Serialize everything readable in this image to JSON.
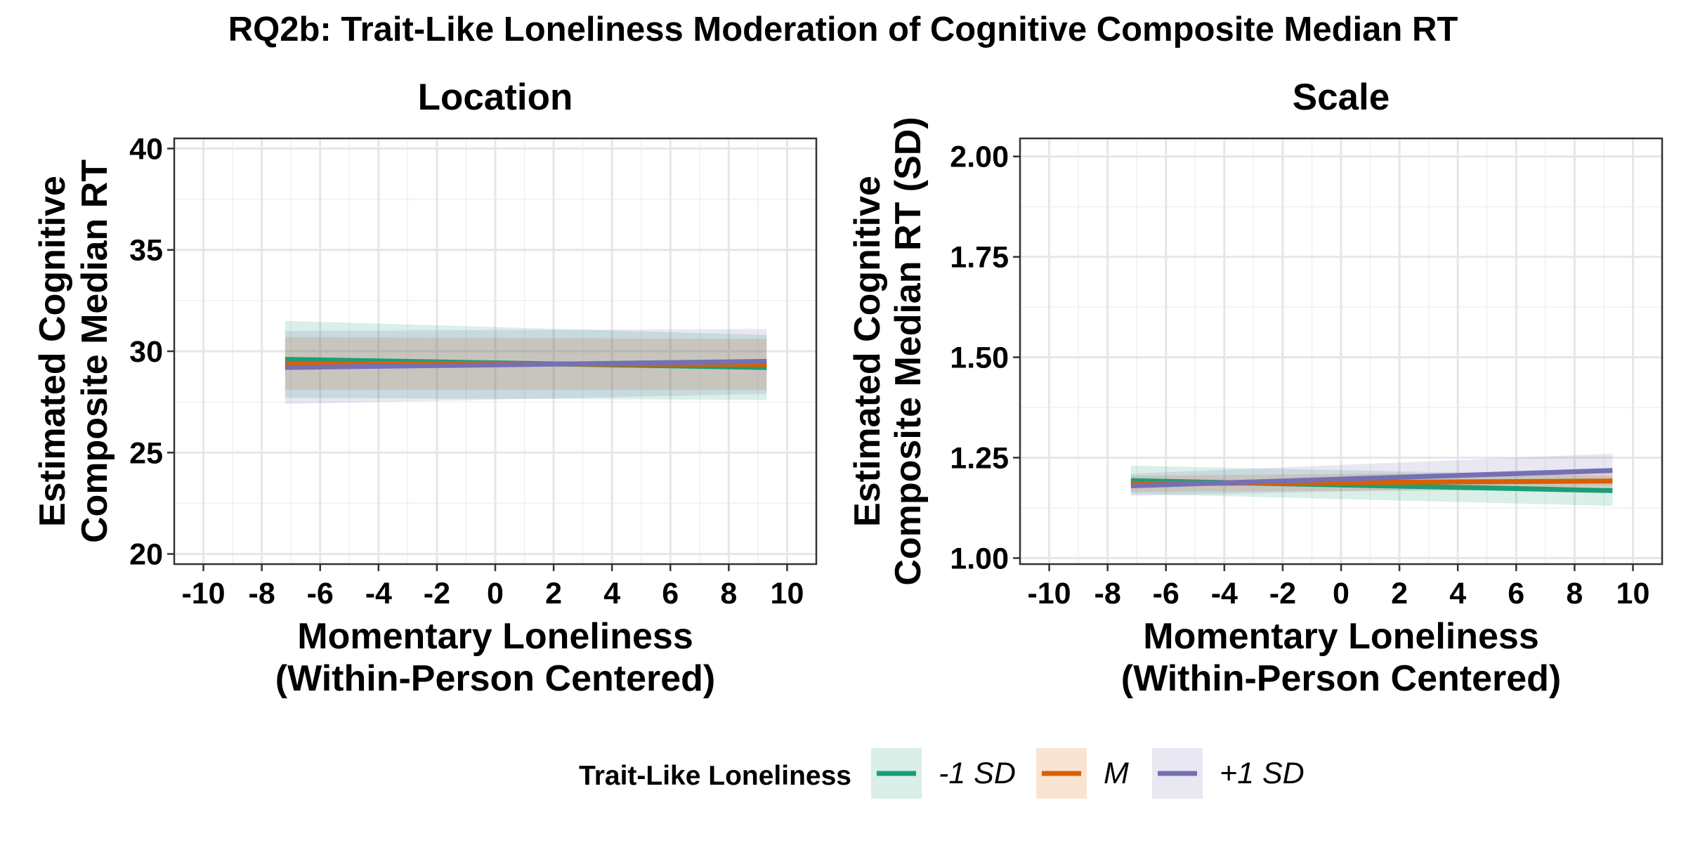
{
  "figure": {
    "title": "RQ2b: Trait-Like Loneliness Moderation of Cognitive Composite Median RT"
  },
  "legend": {
    "title": "Trait-Like Loneliness",
    "position": "bottom",
    "items": [
      {
        "label": "-1 SD",
        "color": "#1b9e77"
      },
      {
        "label": "M",
        "color": "#d95f02"
      },
      {
        "label": "+1 SD",
        "color": "#7570b3"
      }
    ]
  },
  "chart_data": [
    {
      "type": "line",
      "title": "Location",
      "xlabel": [
        "Momentary Loneliness",
        "(Within-Person Centered)"
      ],
      "ylabel": [
        "Estimated Cognitive",
        "Composite Median RT"
      ],
      "xlim": [
        -11,
        11
      ],
      "ylim": [
        19.5,
        40.5
      ],
      "xticks": [
        -10,
        -8,
        -6,
        -4,
        -2,
        0,
        2,
        4,
        6,
        8,
        10
      ],
      "yticks": [
        20,
        25,
        30,
        35,
        40
      ],
      "ytick_labels": [
        "20",
        "25",
        "30",
        "35",
        "40"
      ],
      "grid": true,
      "x": [
        -7.2,
        9.3
      ],
      "series": [
        {
          "name": "-1 SD",
          "color": "#1b9e77",
          "values": [
            29.6,
            29.2
          ],
          "lower": [
            27.7,
            27.6
          ],
          "upper": [
            31.5,
            30.8
          ]
        },
        {
          "name": "M",
          "color": "#d95f02",
          "values": [
            29.4,
            29.35
          ],
          "lower": [
            28.1,
            28.1
          ],
          "upper": [
            30.7,
            30.6
          ]
        },
        {
          "name": "+1 SD",
          "color": "#7570b3",
          "values": [
            29.2,
            29.5
          ],
          "lower": [
            27.4,
            27.9
          ],
          "upper": [
            31.0,
            31.1
          ]
        }
      ]
    },
    {
      "type": "line",
      "title": "Scale",
      "xlabel": [
        "Momentary Loneliness",
        "(Within-Person Centered)"
      ],
      "ylabel": [
        "Estimated Cognitive",
        "Composite Median RT (SD)"
      ],
      "xlim": [
        -11,
        11
      ],
      "ylim": [
        0.985,
        2.045
      ],
      "xticks": [
        -10,
        -8,
        -6,
        -4,
        -2,
        0,
        2,
        4,
        6,
        8,
        10
      ],
      "yticks": [
        1.0,
        1.25,
        1.5,
        1.75,
        2.0
      ],
      "ytick_labels": [
        "1.00",
        "1.25",
        "1.50",
        "1.75",
        "2.00"
      ],
      "grid": true,
      "x": [
        -7.2,
        9.3
      ],
      "series": [
        {
          "name": "-1 SD",
          "color": "#1b9e77",
          "values": [
            1.193,
            1.168
          ],
          "lower": [
            1.16,
            1.13
          ],
          "upper": [
            1.23,
            1.205
          ]
        },
        {
          "name": "M",
          "color": "#d95f02",
          "values": [
            1.185,
            1.192
          ],
          "lower": [
            1.165,
            1.17
          ],
          "upper": [
            1.205,
            1.215
          ]
        },
        {
          "name": "+1 SD",
          "color": "#7570b3",
          "values": [
            1.18,
            1.218
          ],
          "lower": [
            1.155,
            1.18
          ],
          "upper": [
            1.21,
            1.26
          ]
        }
      ]
    }
  ]
}
